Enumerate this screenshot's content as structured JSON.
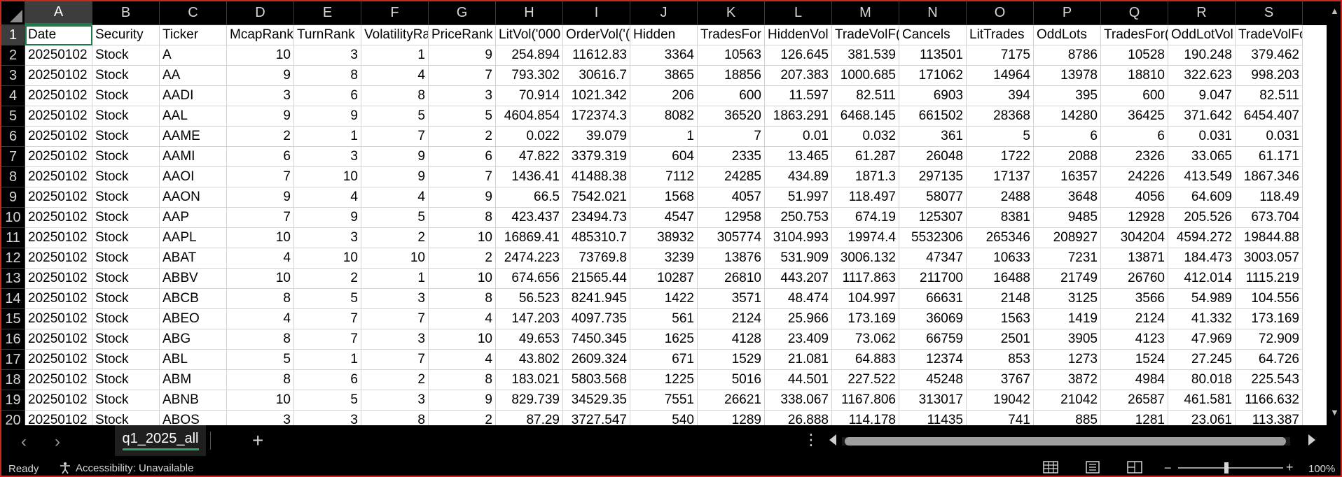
{
  "columns": [
    "A",
    "B",
    "C",
    "D",
    "E",
    "F",
    "G",
    "H",
    "I",
    "J",
    "K",
    "L",
    "M",
    "N",
    "O",
    "P",
    "Q",
    "R",
    "S"
  ],
  "headers": [
    "Date",
    "Security",
    "Ticker",
    "McapRank",
    "TurnRank",
    "VolatilityRa",
    "PriceRank",
    "LitVol('000",
    "OrderVol('(",
    "Hidden",
    "TradesFor",
    "HiddenVol",
    "TradeVolF(",
    "Cancels",
    "LitTrades",
    "OddLots",
    "TradesFor(",
    "OddLotVol",
    "TradeVolForC"
  ],
  "rows": [
    [
      "20250102",
      "Stock",
      "A",
      "10",
      "3",
      "1",
      "9",
      "254.894",
      "11612.83",
      "3364",
      "10563",
      "126.645",
      "381.539",
      "113501",
      "7175",
      "8786",
      "10528",
      "190.248",
      "379.462"
    ],
    [
      "20250102",
      "Stock",
      "AA",
      "9",
      "8",
      "4",
      "7",
      "793.302",
      "30616.7",
      "3865",
      "18856",
      "207.383",
      "1000.685",
      "171062",
      "14964",
      "13978",
      "18810",
      "322.623",
      "998.203"
    ],
    [
      "20250102",
      "Stock",
      "AADI",
      "3",
      "6",
      "8",
      "3",
      "70.914",
      "1021.342",
      "206",
      "600",
      "11.597",
      "82.511",
      "6903",
      "394",
      "395",
      "600",
      "9.047",
      "82.511"
    ],
    [
      "20250102",
      "Stock",
      "AAL",
      "9",
      "9",
      "5",
      "5",
      "4604.854",
      "172374.3",
      "8082",
      "36520",
      "1863.291",
      "6468.145",
      "661502",
      "28368",
      "14280",
      "36425",
      "371.642",
      "6454.407"
    ],
    [
      "20250102",
      "Stock",
      "AAME",
      "2",
      "1",
      "7",
      "2",
      "0.022",
      "39.079",
      "1",
      "7",
      "0.01",
      "0.032",
      "361",
      "5",
      "6",
      "6",
      "0.031",
      "0.031"
    ],
    [
      "20250102",
      "Stock",
      "AAMI",
      "6",
      "3",
      "9",
      "6",
      "47.822",
      "3379.319",
      "604",
      "2335",
      "13.465",
      "61.287",
      "26048",
      "1722",
      "2088",
      "2326",
      "33.065",
      "61.171"
    ],
    [
      "20250102",
      "Stock",
      "AAOI",
      "7",
      "10",
      "9",
      "7",
      "1436.41",
      "41488.38",
      "7112",
      "24285",
      "434.89",
      "1871.3",
      "297135",
      "17137",
      "16357",
      "24226",
      "413.549",
      "1867.346"
    ],
    [
      "20250102",
      "Stock",
      "AAON",
      "9",
      "4",
      "4",
      "9",
      "66.5",
      "7542.021",
      "1568",
      "4057",
      "51.997",
      "118.497",
      "58077",
      "2488",
      "3648",
      "4056",
      "64.609",
      "118.49"
    ],
    [
      "20250102",
      "Stock",
      "AAP",
      "7",
      "9",
      "5",
      "8",
      "423.437",
      "23494.73",
      "4547",
      "12958",
      "250.753",
      "674.19",
      "125307",
      "8381",
      "9485",
      "12928",
      "205.526",
      "673.704"
    ],
    [
      "20250102",
      "Stock",
      "AAPL",
      "10",
      "3",
      "2",
      "10",
      "16869.41",
      "485310.7",
      "38932",
      "305774",
      "3104.993",
      "19974.4",
      "5532306",
      "265346",
      "208927",
      "304204",
      "4594.272",
      "19844.88"
    ],
    [
      "20250102",
      "Stock",
      "ABAT",
      "4",
      "10",
      "10",
      "2",
      "2474.223",
      "73769.8",
      "3239",
      "13876",
      "531.909",
      "3006.132",
      "47347",
      "10633",
      "7231",
      "13871",
      "184.473",
      "3003.057"
    ],
    [
      "20250102",
      "Stock",
      "ABBV",
      "10",
      "2",
      "1",
      "10",
      "674.656",
      "21565.44",
      "10287",
      "26810",
      "443.207",
      "1117.863",
      "211700",
      "16488",
      "21749",
      "26760",
      "412.014",
      "1115.219"
    ],
    [
      "20250102",
      "Stock",
      "ABCB",
      "8",
      "5",
      "3",
      "8",
      "56.523",
      "8241.945",
      "1422",
      "3571",
      "48.474",
      "104.997",
      "66631",
      "2148",
      "3125",
      "3566",
      "54.989",
      "104.556"
    ],
    [
      "20250102",
      "Stock",
      "ABEO",
      "4",
      "7",
      "7",
      "4",
      "147.203",
      "4097.735",
      "561",
      "2124",
      "25.966",
      "173.169",
      "36069",
      "1563",
      "1419",
      "2124",
      "41.332",
      "173.169"
    ],
    [
      "20250102",
      "Stock",
      "ABG",
      "8",
      "7",
      "3",
      "10",
      "49.653",
      "7450.345",
      "1625",
      "4128",
      "23.409",
      "73.062",
      "66759",
      "2501",
      "3905",
      "4123",
      "47.969",
      "72.909"
    ],
    [
      "20250102",
      "Stock",
      "ABL",
      "5",
      "1",
      "7",
      "4",
      "43.802",
      "2609.324",
      "671",
      "1529",
      "21.081",
      "64.883",
      "12374",
      "853",
      "1273",
      "1524",
      "27.245",
      "64.726"
    ],
    [
      "20250102",
      "Stock",
      "ABM",
      "8",
      "6",
      "2",
      "8",
      "183.021",
      "5803.568",
      "1225",
      "5016",
      "44.501",
      "227.522",
      "45248",
      "3767",
      "3872",
      "4984",
      "80.018",
      "225.543"
    ],
    [
      "20250102",
      "Stock",
      "ABNB",
      "10",
      "5",
      "3",
      "9",
      "829.739",
      "34529.35",
      "7551",
      "26621",
      "338.067",
      "1167.806",
      "313017",
      "19042",
      "21042",
      "26587",
      "461.581",
      "1166.632"
    ],
    [
      "20250102",
      "Stock",
      "ABOS",
      "3",
      "3",
      "8",
      "2",
      "87.29",
      "3727.547",
      "540",
      "1289",
      "26.888",
      "114.178",
      "11435",
      "741",
      "885",
      "1281",
      "23.061",
      "113.387"
    ]
  ],
  "sheet_tab": "q1_2025_all",
  "add_sheet_label": "+",
  "more_label": "⋮",
  "status": {
    "ready": "Ready",
    "accessibility": "Accessibility: Unavailable",
    "zoom": "100%",
    "zoom_minus": "−",
    "zoom_plus": "+"
  },
  "nav": {
    "prev": "‹",
    "next": "›"
  },
  "colors": {
    "accent": "#1f7a4a",
    "tab_underline": "#2fa66a",
    "window_border": "#c42b1c"
  }
}
